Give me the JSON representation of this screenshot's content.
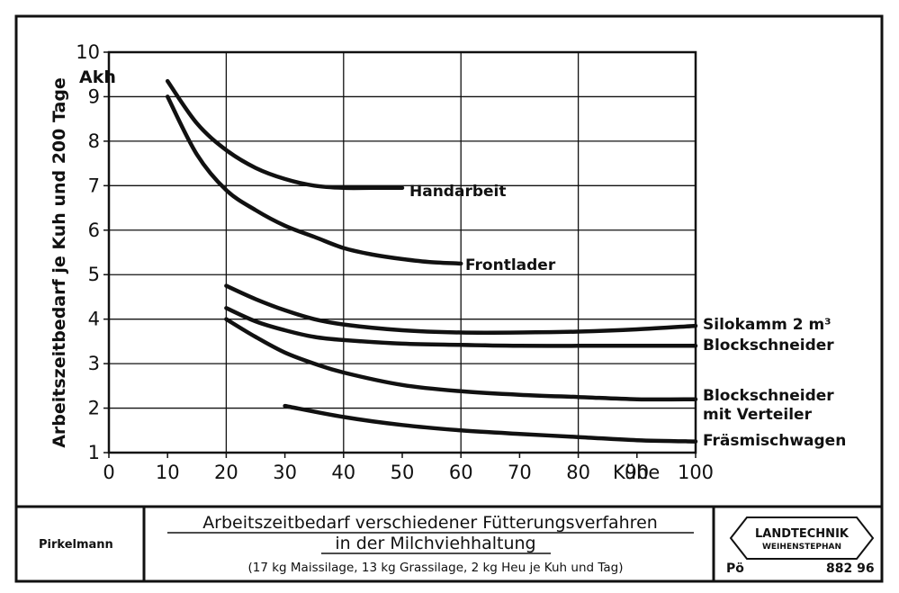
{
  "chart_data": {
    "type": "line",
    "ylabel": "Arbeitszeitbedarf je Kuh und 200 Tage",
    "yunit": "Akh",
    "xunit": "Kühe",
    "xlim": [
      0,
      100
    ],
    "ylim": [
      1,
      10
    ],
    "xticks": [
      "0",
      "10",
      "20",
      "30",
      "40",
      "50",
      "60",
      "70",
      "80",
      "90",
      "100"
    ],
    "yticks": [
      "1",
      "2",
      "3",
      "4",
      "5",
      "6",
      "7",
      "8",
      "9",
      "10"
    ],
    "grid": true,
    "series": [
      {
        "name": "Handarbeit",
        "x": [
          10,
          15,
          20,
          25,
          30,
          35,
          40,
          45,
          50
        ],
        "y": [
          9.35,
          8.4,
          7.8,
          7.4,
          7.15,
          7.0,
          6.95,
          6.95,
          6.95
        ]
      },
      {
        "name": "Frontlader",
        "x": [
          10,
          15,
          20,
          25,
          30,
          35,
          40,
          45,
          50,
          55,
          60
        ],
        "y": [
          9.0,
          7.7,
          6.9,
          6.45,
          6.1,
          5.85,
          5.6,
          5.45,
          5.35,
          5.28,
          5.25
        ]
      },
      {
        "name": "Silokamm 2 m³",
        "x": [
          20,
          25,
          30,
          35,
          40,
          50,
          60,
          70,
          80,
          90,
          100
        ],
        "y": [
          4.75,
          4.45,
          4.2,
          4.0,
          3.88,
          3.75,
          3.7,
          3.7,
          3.72,
          3.77,
          3.85
        ]
      },
      {
        "name": "Blockschneider",
        "x": [
          20,
          25,
          30,
          35,
          40,
          50,
          60,
          70,
          80,
          90,
          100
        ],
        "y": [
          4.25,
          3.95,
          3.75,
          3.6,
          3.53,
          3.45,
          3.42,
          3.4,
          3.4,
          3.4,
          3.4
        ]
      },
      {
        "name": "Blockschneider mit Verteiler",
        "x": [
          20,
          25,
          30,
          35,
          40,
          50,
          60,
          70,
          80,
          90,
          100
        ],
        "y": [
          4.0,
          3.6,
          3.25,
          3.0,
          2.8,
          2.52,
          2.38,
          2.3,
          2.25,
          2.2,
          2.2
        ]
      },
      {
        "name": "Fräsmischwagen",
        "x": [
          30,
          40,
          50,
          60,
          70,
          80,
          90,
          100
        ],
        "y": [
          2.05,
          1.8,
          1.62,
          1.5,
          1.42,
          1.35,
          1.28,
          1.25
        ]
      }
    ]
  },
  "footer": {
    "author": "Pirkelmann",
    "title_line1": "Arbeitszeitbedarf verschiedener Fütterungsverfahren",
    "title_line2": "in der Milchviehhaltung",
    "subtitle": "(17 kg Maissilage, 13 kg Grassilage, 2 kg Heu je Kuh und Tag)",
    "logo_line1": "LANDTECHNIK",
    "logo_line2": "WEIHENSTEPHAN",
    "code_left": "Pö",
    "code_right": "882 96"
  }
}
